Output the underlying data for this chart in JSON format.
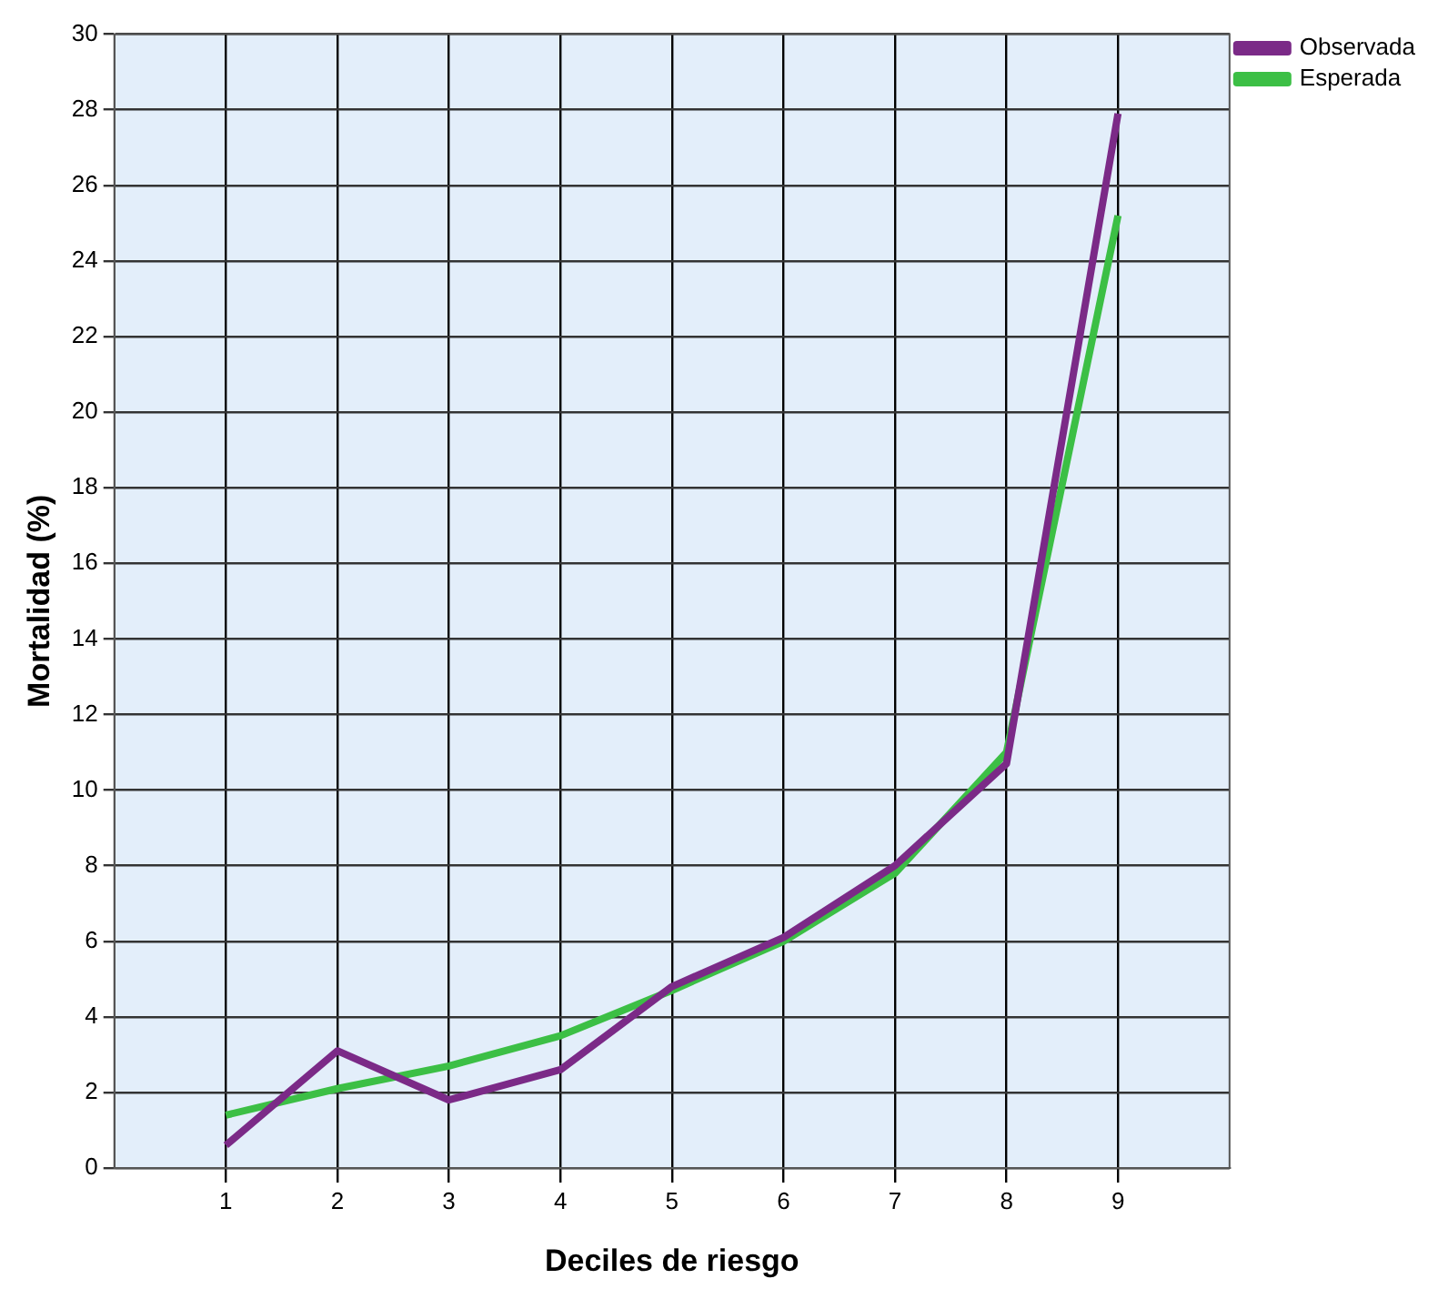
{
  "chart_data": {
    "type": "line",
    "xlabel": "Deciles de riesgo",
    "ylabel": "Mortalidad (%)",
    "x": [
      1,
      2,
      3,
      4,
      5,
      6,
      7,
      8,
      9
    ],
    "series": [
      {
        "name": "Observada",
        "color": "#7b2a87",
        "values": [
          0.6,
          3.1,
          1.8,
          2.6,
          4.8,
          6.1,
          8.0,
          10.7,
          27.9
        ]
      },
      {
        "name": "Esperada",
        "color": "#3cbf45",
        "values": [
          1.4,
          2.1,
          2.7,
          3.5,
          4.7,
          6.0,
          7.8,
          11.0,
          25.2
        ]
      }
    ],
    "xlim": [
      0,
      10
    ],
    "xticks": [
      1,
      2,
      3,
      4,
      5,
      6,
      7,
      8,
      9
    ],
    "ylim": [
      0,
      30
    ],
    "yticks": [
      0,
      2,
      4,
      6,
      8,
      10,
      12,
      14,
      16,
      18,
      20,
      22,
      24,
      26,
      28,
      30
    ],
    "grid": true,
    "legend": "top right",
    "marker": "none",
    "line_style": "solid"
  }
}
